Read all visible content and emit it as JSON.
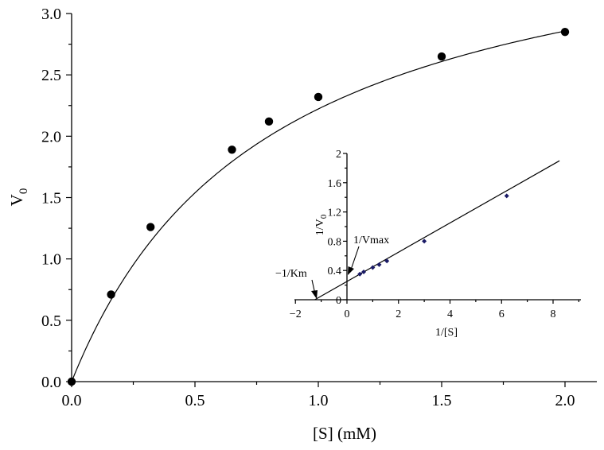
{
  "chart_data": [
    {
      "type": "scatter",
      "title": "",
      "xlabel": "[S] (mM)",
      "ylabel": "V",
      "ylabel_sub": "0",
      "xlim": [
        0,
        2.2
      ],
      "ylim": [
        0,
        3.0
      ],
      "x_ticks": [
        "0.0",
        "0.5",
        "1.0",
        "1.5",
        "2.0"
      ],
      "y_ticks": [
        "0.0",
        "0.5",
        "1.0",
        "1.5",
        "2.0",
        "2.5",
        "3.0"
      ],
      "series": [
        {
          "x": [
            0.0,
            0.16,
            0.32,
            0.65,
            0.8,
            1.0,
            1.5,
            2.0
          ],
          "y": [
            0.0,
            0.71,
            1.26,
            1.89,
            2.12,
            2.32,
            2.65,
            2.85
          ]
        }
      ],
      "fit": {
        "model": "michaelis-menten",
        "vmax": 4.0,
        "km": 0.8
      }
    },
    {
      "type": "line",
      "title": "",
      "xlabel": "1/[S]",
      "ylabel": "1/V",
      "ylabel_sub": "0",
      "xlim": [
        -2,
        9
      ],
      "ylim": [
        0,
        2
      ],
      "x_ticks": [
        "−2",
        "0",
        "2",
        "4",
        "6",
        "8"
      ],
      "y_ticks": [
        "0",
        "0.4",
        "0.8",
        "1.2",
        "1.6",
        "2"
      ],
      "series": [
        {
          "x": [
            0.5,
            0.65,
            1.0,
            1.25,
            1.55,
            3.0,
            6.2
          ],
          "y": [
            0.35,
            0.38,
            0.44,
            0.48,
            0.53,
            0.8,
            1.42
          ]
        }
      ],
      "fit": {
        "slope": 0.2,
        "intercept": 0.25,
        "x_from": -1.25,
        "x_to": 8.25
      },
      "annotations": [
        "1/Vmax",
        "−1/Km"
      ]
    }
  ]
}
